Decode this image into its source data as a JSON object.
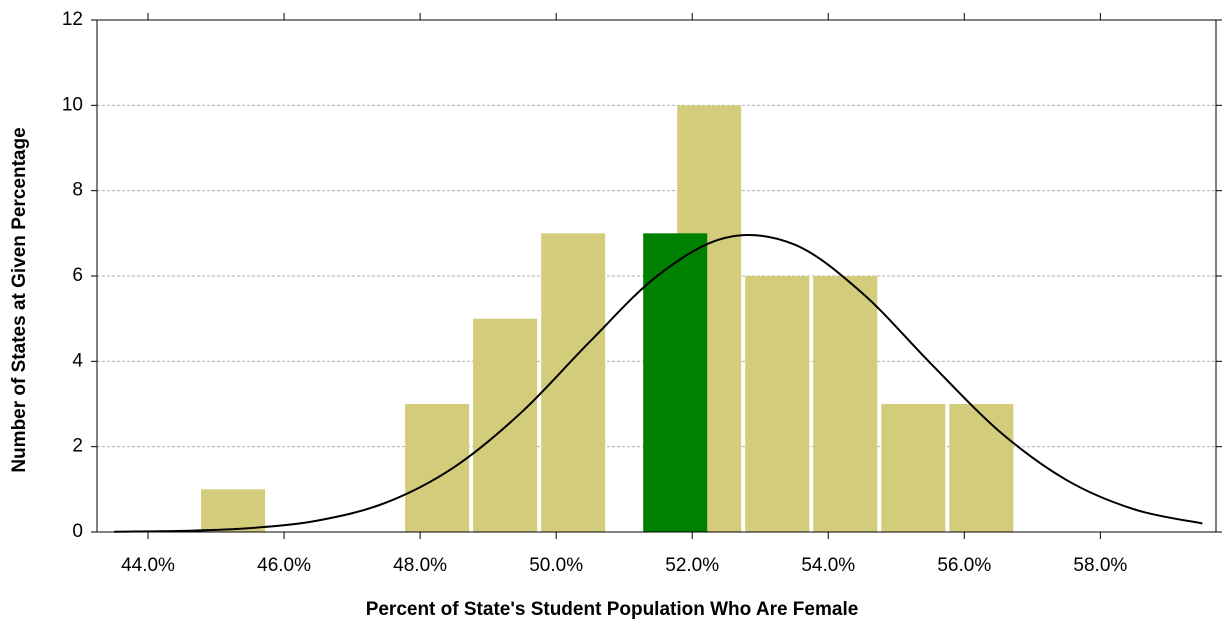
{
  "chart_data": {
    "type": "histogram",
    "xlabel": "Percent of State's Student Population Who Are Female",
    "ylabel": "Number of States at Given Percentage",
    "bins": [
      44.75,
      45.75,
      46.75,
      47.75,
      48.75,
      49.75,
      50.75,
      51.75,
      52.75,
      53.75,
      54.75,
      55.75,
      56.75
    ],
    "counts": [
      1,
      0,
      0,
      3,
      5,
      7,
      0,
      10,
      6,
      6,
      3,
      3
    ],
    "color": "#d3cd7b",
    "highlight": {
      "bins": [
        51.25,
        52.25
      ],
      "value": 7,
      "color": "#008000"
    },
    "curve": {
      "color": "#000000",
      "x": [
        43.5,
        44.5,
        45.5,
        46.5,
        47.5,
        48.5,
        49.5,
        50.5,
        51.5,
        52.5,
        53.5,
        54.5,
        55.5,
        56.5,
        57.5,
        58.5,
        59.5
      ],
      "values": [
        0.006,
        0.025,
        0.09,
        0.27,
        0.69,
        1.52,
        2.82,
        4.47,
        6.02,
        6.9,
        6.74,
        5.6,
        3.96,
        2.38,
        1.22,
        0.53,
        0.2
      ]
    },
    "xlim": [
      43.25,
      59.7
    ],
    "xticks": [
      {
        "value": 44,
        "label": "44.0%"
      },
      {
        "value": 46,
        "label": "46.0%"
      },
      {
        "value": 48,
        "label": "48.0%"
      },
      {
        "value": 50,
        "label": "50.0%"
      },
      {
        "value": 52,
        "label": "52.0%"
      },
      {
        "value": 54,
        "label": "54.0%"
      },
      {
        "value": 56,
        "label": "56.0%"
      },
      {
        "value": 58,
        "label": "58.0%"
      }
    ],
    "ylim": [
      0,
      12
    ],
    "yticks": [
      0,
      2,
      4,
      6,
      8,
      10,
      12
    ],
    "grid": true
  }
}
